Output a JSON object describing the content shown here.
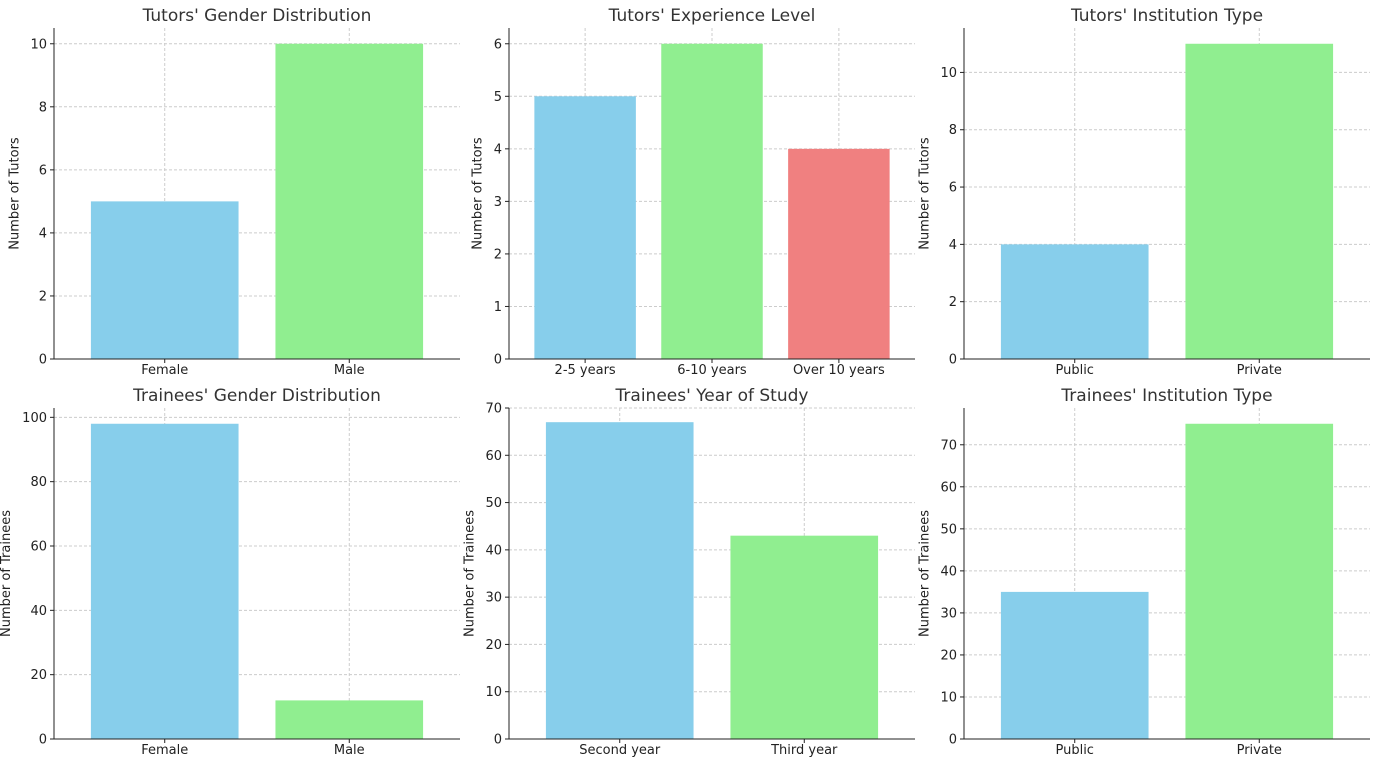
{
  "chart_data": [
    {
      "type": "bar",
      "title": "Tutors' Gender Distribution",
      "xlabel": "",
      "ylabel": "Number of Tutors",
      "categories": [
        "Female",
        "Male"
      ],
      "values": [
        5,
        10
      ],
      "colors": [
        "#87ceeb",
        "#90ee90"
      ],
      "ylim": [
        0,
        10.5
      ],
      "yticks": [
        0,
        2,
        4,
        6,
        8,
        10
      ],
      "grid": true
    },
    {
      "type": "bar",
      "title": "Tutors' Experience Level",
      "xlabel": "",
      "ylabel": "Number of Tutors",
      "categories": [
        "2-5 years",
        "6-10 years",
        "Over 10 years"
      ],
      "values": [
        5,
        6,
        4
      ],
      "colors": [
        "#87ceeb",
        "#90ee90",
        "#f08080"
      ],
      "ylim": [
        0,
        6.3
      ],
      "yticks": [
        0,
        1,
        2,
        3,
        4,
        5,
        6
      ],
      "grid": true
    },
    {
      "type": "bar",
      "title": "Tutors' Institution Type",
      "xlabel": "",
      "ylabel": "Number of Tutors",
      "categories": [
        "Public",
        "Private"
      ],
      "values": [
        4,
        11
      ],
      "colors": [
        "#87ceeb",
        "#90ee90"
      ],
      "ylim": [
        0,
        11.55
      ],
      "yticks": [
        0,
        2,
        4,
        6,
        8,
        10
      ],
      "grid": true
    },
    {
      "type": "bar",
      "title": "Trainees' Gender Distribution",
      "xlabel": "",
      "ylabel": "Number of Trainees",
      "categories": [
        "Female",
        "Male"
      ],
      "values": [
        98,
        12
      ],
      "colors": [
        "#87ceeb",
        "#90ee90"
      ],
      "ylim": [
        0,
        102.9
      ],
      "yticks": [
        0,
        20,
        40,
        60,
        80,
        100
      ],
      "grid": true
    },
    {
      "type": "bar",
      "title": "Trainees' Year of Study",
      "xlabel": "",
      "ylabel": "Number of Trainees",
      "categories": [
        "Second year",
        "Third year"
      ],
      "values": [
        67,
        43
      ],
      "colors": [
        "#87ceeb",
        "#90ee90"
      ],
      "ylim": [
        0,
        70
      ],
      "yticks": [
        0,
        10,
        20,
        30,
        40,
        50,
        60,
        70
      ],
      "grid": true
    },
    {
      "type": "bar",
      "title": "Trainees' Institution Type",
      "xlabel": "",
      "ylabel": "Number of Trainees",
      "categories": [
        "Public",
        "Private"
      ],
      "values": [
        35,
        75
      ],
      "colors": [
        "#87ceeb",
        "#90ee90"
      ],
      "ylim": [
        0,
        78.75
      ],
      "yticks": [
        0,
        10,
        20,
        30,
        40,
        50,
        60,
        70
      ],
      "grid": true
    }
  ]
}
